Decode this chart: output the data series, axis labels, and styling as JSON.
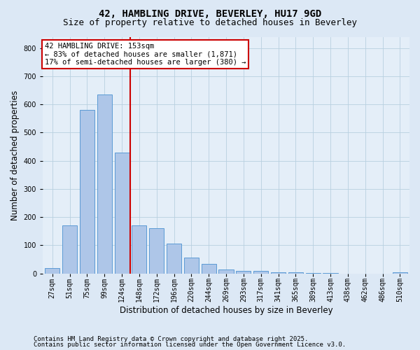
{
  "title1": "42, HAMBLING DRIVE, BEVERLEY, HU17 9GD",
  "title2": "Size of property relative to detached houses in Beverley",
  "xlabel": "Distribution of detached houses by size in Beverley",
  "ylabel": "Number of detached properties",
  "categories": [
    "27sqm",
    "51sqm",
    "75sqm",
    "99sqm",
    "124sqm",
    "148sqm",
    "172sqm",
    "196sqm",
    "220sqm",
    "244sqm",
    "269sqm",
    "293sqm",
    "317sqm",
    "341sqm",
    "365sqm",
    "389sqm",
    "413sqm",
    "438sqm",
    "462sqm",
    "486sqm",
    "510sqm"
  ],
  "values": [
    20,
    170,
    580,
    635,
    430,
    170,
    160,
    105,
    55,
    35,
    15,
    10,
    8,
    5,
    3,
    2,
    1,
    0,
    0,
    0,
    5
  ],
  "bar_color": "#aec6e8",
  "bar_edge_color": "#5b9bd5",
  "highlight_index": 5,
  "highlight_bar_color": "#f4a7a7",
  "highlight_bar_edge_color": "#cc0000",
  "vline_x": 4.5,
  "vline_color": "#cc0000",
  "annotation_text": "42 HAMBLING DRIVE: 153sqm\n← 83% of detached houses are smaller (1,871)\n17% of semi-detached houses are larger (380) →",
  "annotation_box_color": "#ffffff",
  "annotation_box_edge": "#cc0000",
  "ylim": [
    0,
    840
  ],
  "yticks": [
    0,
    100,
    200,
    300,
    400,
    500,
    600,
    700,
    800
  ],
  "footer1": "Contains HM Land Registry data © Crown copyright and database right 2025.",
  "footer2": "Contains public sector information licensed under the Open Government Licence v3.0.",
  "bg_color": "#dce8f5",
  "plot_bg_color": "#e4eef8",
  "title_fontsize": 10,
  "subtitle_fontsize": 9,
  "tick_fontsize": 7,
  "label_fontsize": 8.5,
  "footer_fontsize": 6.5
}
